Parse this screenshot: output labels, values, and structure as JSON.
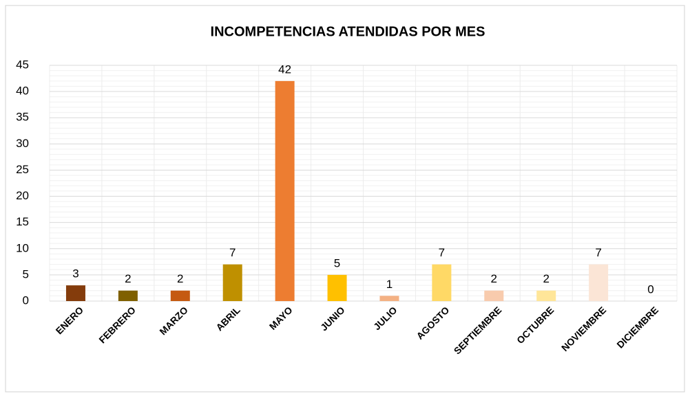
{
  "chart_data": {
    "type": "bar",
    "title": "INCOMPETENCIAS ATENDIDAS POR MES",
    "categories": [
      "ENERO",
      "FEBRERO",
      "MARZO",
      "ABRIL",
      "MAYO",
      "JUNIO",
      "JULIO",
      "AGOSTO",
      "SEPTIEMBRE",
      "OCTUBRE",
      "NOVIEMBRE",
      "DICIEMBRE"
    ],
    "values": [
      3,
      2,
      2,
      7,
      42,
      5,
      1,
      7,
      2,
      2,
      7,
      0
    ],
    "colors": [
      "#843c0c",
      "#7f6000",
      "#c55a11",
      "#bf9000",
      "#ed7d31",
      "#ffc000",
      "#f4b183",
      "#ffd966",
      "#f8cbad",
      "#ffe699",
      "#fbe5d6",
      "#fff2cc"
    ],
    "ylim": [
      0,
      45
    ],
    "yticks": [
      0,
      5,
      10,
      15,
      20,
      25,
      30,
      35,
      40,
      45
    ],
    "grid": true,
    "minor_grid": true,
    "data_labels": true
  }
}
